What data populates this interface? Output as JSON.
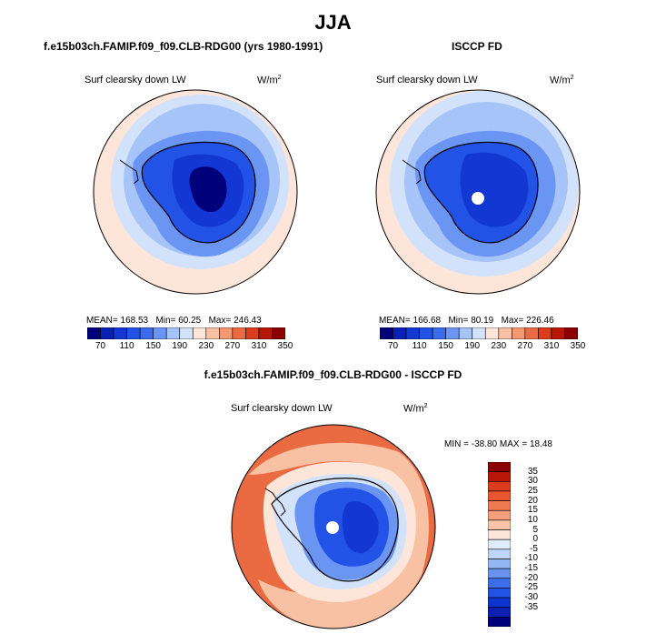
{
  "page": {
    "season": "JJA"
  },
  "panels": {
    "model": {
      "title": "f.e15b03ch.FAMIP.f09_f09.CLB-RDG00 (yrs 1980-1991)",
      "field": "Surf clearsky down LW",
      "unit": "W/m",
      "unit_exponent": "2",
      "mean_label": "MEAN=",
      "mean": "168.53",
      "min_label": "Min=",
      "min": "60.25",
      "max_label": "Max=",
      "max": "246.43"
    },
    "obs": {
      "title": "ISCCP FD",
      "field": "Surf clearsky down LW",
      "unit": "W/m",
      "unit_exponent": "2",
      "mean_label": "MEAN=",
      "mean": "166.68",
      "min_label": "Min=",
      "min": "80.19",
      "max_label": "Max=",
      "max": "226.46"
    },
    "diff": {
      "title": "f.e15b03ch.FAMIP.f09_f09.CLB-RDG00 - ISCCP FD",
      "field": "Surf clearsky down LW",
      "unit": "W/m",
      "unit_exponent": "2",
      "min_label": "MIN =",
      "min": "-38.80",
      "max_label": "MAX =",
      "max": "18.48"
    }
  },
  "colorbars": {
    "absolute": {
      "colors": [
        "#00007a",
        "#0a1fb4",
        "#1237d2",
        "#2352e6",
        "#3b6cf0",
        "#6b95f3",
        "#a6c4f7",
        "#d2e2fa",
        "#fde6d9",
        "#f9c1a4",
        "#f39a72",
        "#ea6a42",
        "#dc3b1d",
        "#b81608",
        "#8a0000"
      ],
      "labels": [
        "70",
        "110",
        "150",
        "190",
        "230",
        "270",
        "310",
        "350"
      ]
    },
    "difference": {
      "colors_top_to_bottom": [
        "#8a0000",
        "#b81608",
        "#dc3b1d",
        "#ea5530",
        "#f07a52",
        "#f59f7c",
        "#f9c4a8",
        "#fde6d9",
        "#e1ecfb",
        "#c0d6f8",
        "#95b6f4",
        "#6a92f0",
        "#3f6eea",
        "#2352e6",
        "#0f33cf",
        "#0a1fb4",
        "#00007a"
      ],
      "labels_top_to_bottom": [
        "35",
        "30",
        "25",
        "20",
        "15",
        "10",
        "5",
        "0",
        "-5",
        "-10",
        "-15",
        "-20",
        "-25",
        "-30",
        "-35"
      ]
    }
  },
  "map_colors": {
    "ocean_far": "#fde6d9",
    "ocean_mid": "#d2e2fa",
    "ice_edge": "#a6c4f7",
    "coast": "#6b95f3",
    "plateau": "#2352e6",
    "interior": "#1237d2",
    "core": "#00007a",
    "diff_pos_strong": "#ea6a42",
    "diff_pos": "#f9c1a4",
    "diff_zero": "#fde6d9",
    "diff_neg_weak": "#d2e2fa",
    "diff_neg": "#6b95f3",
    "diff_neg_strong": "#2352e6",
    "diff_core": "#1237d2"
  }
}
